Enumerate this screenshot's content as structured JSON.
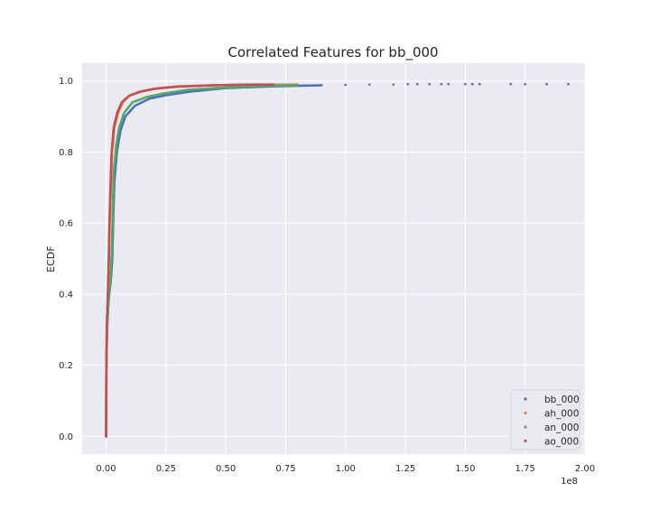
{
  "chart_data": {
    "type": "scatter",
    "title": "Correlated Features for bb_000",
    "xlabel": "",
    "ylabel": "ECDF",
    "x_scale_label": "1e8",
    "xlim": [
      -0.1,
      2.0
    ],
    "ylim": [
      -0.05,
      1.05
    ],
    "xticks": [
      0.0,
      0.25,
      0.5,
      0.75,
      1.0,
      1.25,
      1.5,
      1.75,
      2.0
    ],
    "xtick_labels": [
      "0.00",
      "0.25",
      "0.50",
      "0.75",
      "1.00",
      "1.25",
      "1.50",
      "1.75",
      "2.00"
    ],
    "yticks": [
      0.0,
      0.2,
      0.4,
      0.6,
      0.8,
      1.0
    ],
    "ytick_labels": [
      "0.0",
      "0.2",
      "0.4",
      "0.6",
      "0.8",
      "1.0"
    ],
    "grid": true,
    "legend_position": "lower-right",
    "series": [
      {
        "name": "bb_000",
        "color": "#4c72b0",
        "points": [
          [
            0,
            0
          ],
          [
            0.001,
            0.17
          ],
          [
            0.004,
            0.3
          ],
          [
            0.01,
            0.38
          ],
          [
            0.02,
            0.44
          ],
          [
            0.026,
            0.5
          ],
          [
            0.03,
            0.62
          ],
          [
            0.035,
            0.72
          ],
          [
            0.045,
            0.8
          ],
          [
            0.06,
            0.86
          ],
          [
            0.08,
            0.9
          ],
          [
            0.12,
            0.93
          ],
          [
            0.18,
            0.95
          ],
          [
            0.25,
            0.96
          ],
          [
            0.35,
            0.97
          ],
          [
            0.5,
            0.98
          ],
          [
            0.7,
            0.985
          ],
          [
            0.9,
            0.988
          ],
          [
            1.0,
            0.989
          ],
          [
            1.1,
            0.99
          ],
          [
            1.2,
            0.99
          ],
          [
            1.26,
            0.991
          ],
          [
            1.3,
            0.991
          ],
          [
            1.35,
            0.991
          ],
          [
            1.4,
            0.991
          ],
          [
            1.43,
            0.991
          ],
          [
            1.5,
            0.991
          ],
          [
            1.53,
            0.991
          ],
          [
            1.56,
            0.991
          ],
          [
            1.69,
            0.991
          ],
          [
            1.75,
            0.991
          ],
          [
            1.93,
            0.991
          ]
        ]
      },
      {
        "name": "ah_000",
        "color": "#dd8452",
        "points": [
          [
            0,
            0
          ],
          [
            0.001,
            0.2
          ],
          [
            0.004,
            0.32
          ],
          [
            0.008,
            0.4
          ],
          [
            0.012,
            0.5
          ],
          [
            0.015,
            0.6
          ],
          [
            0.02,
            0.7
          ],
          [
            0.025,
            0.8
          ],
          [
            0.035,
            0.87
          ],
          [
            0.05,
            0.91
          ],
          [
            0.07,
            0.94
          ],
          [
            0.1,
            0.96
          ],
          [
            0.15,
            0.97
          ],
          [
            0.22,
            0.98
          ],
          [
            0.3,
            0.985
          ],
          [
            0.45,
            0.988
          ],
          [
            0.65,
            0.99
          ],
          [
            0.8,
            0.99
          ]
        ]
      },
      {
        "name": "an_000",
        "color": "#55a868",
        "points": [
          [
            0,
            0
          ],
          [
            0.001,
            0.18
          ],
          [
            0.004,
            0.3
          ],
          [
            0.01,
            0.38
          ],
          [
            0.018,
            0.44
          ],
          [
            0.024,
            0.52
          ],
          [
            0.028,
            0.64
          ],
          [
            0.032,
            0.74
          ],
          [
            0.042,
            0.82
          ],
          [
            0.055,
            0.87
          ],
          [
            0.075,
            0.91
          ],
          [
            0.11,
            0.94
          ],
          [
            0.17,
            0.955
          ],
          [
            0.24,
            0.965
          ],
          [
            0.34,
            0.975
          ],
          [
            0.5,
            0.982
          ],
          [
            0.65,
            0.986
          ],
          [
            0.8,
            0.988
          ]
        ]
      },
      {
        "name": "ao_000",
        "color": "#c44e52",
        "points": [
          [
            0,
            0
          ],
          [
            0.001,
            0.2
          ],
          [
            0.003,
            0.32
          ],
          [
            0.007,
            0.4
          ],
          [
            0.011,
            0.5
          ],
          [
            0.014,
            0.6
          ],
          [
            0.018,
            0.7
          ],
          [
            0.023,
            0.8
          ],
          [
            0.032,
            0.87
          ],
          [
            0.046,
            0.91
          ],
          [
            0.065,
            0.94
          ],
          [
            0.095,
            0.958
          ],
          [
            0.14,
            0.97
          ],
          [
            0.2,
            0.978
          ],
          [
            0.3,
            0.984
          ],
          [
            0.45,
            0.988
          ],
          [
            0.6,
            0.99
          ],
          [
            0.7,
            0.99
          ]
        ]
      }
    ]
  }
}
